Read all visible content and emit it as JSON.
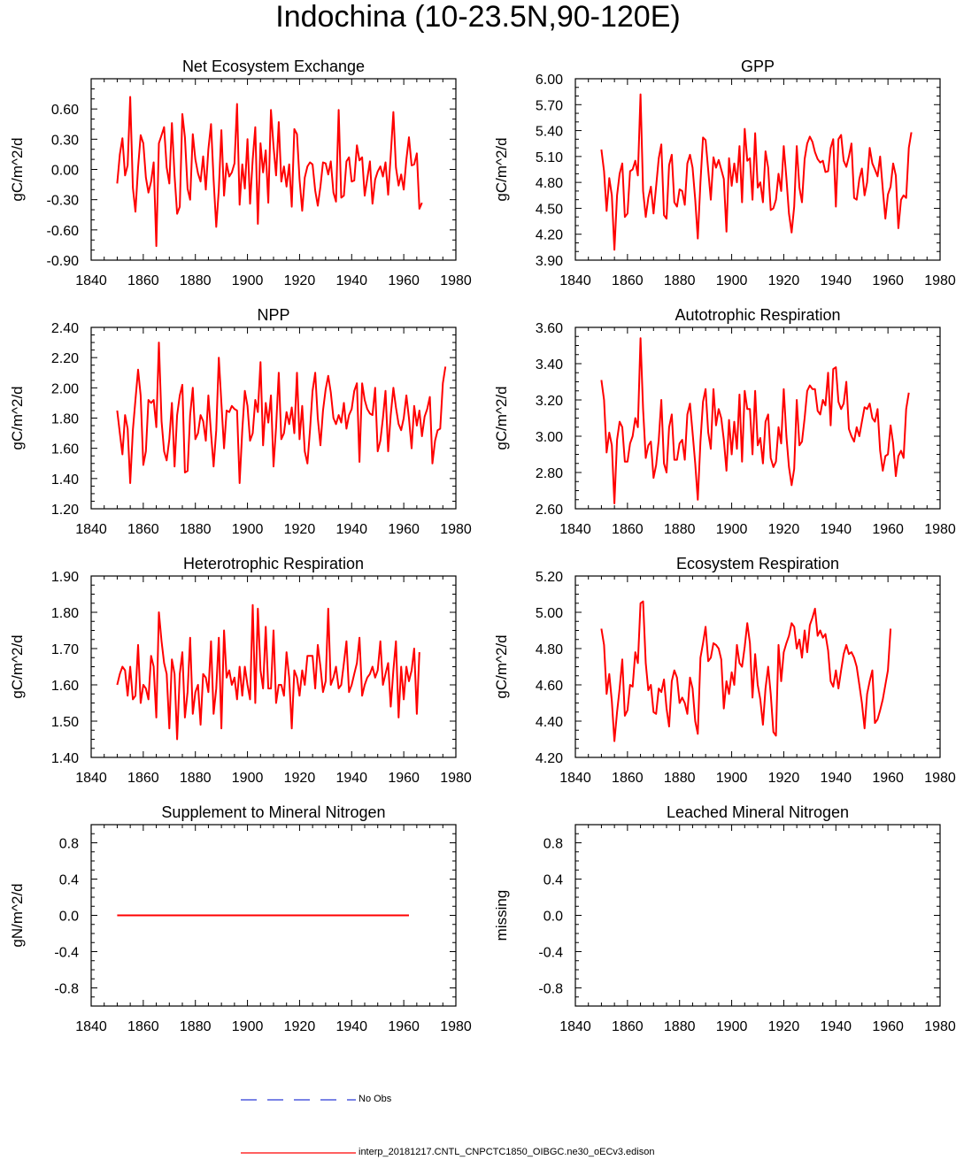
{
  "page_title": "Indochina (10-23.5N,90-120E)",
  "legend": {
    "obs_label": "No Obs",
    "model_label": "interp_20181217.CNTL_CNPCTC1850_OIBGC.ne30_oECv3.edison",
    "obs_color": "#2b3bd6",
    "model_color": "#ff0000"
  },
  "chart_data": [
    {
      "type": "line",
      "title": "Net Ecosystem Exchange",
      "ylabel": "gC/m^2/d",
      "xlim": [
        1840,
        1980
      ],
      "ylim": [
        -0.9,
        0.9
      ],
      "xticks": [
        "1840",
        "1860",
        "1880",
        "1900",
        "1920",
        "1940",
        "1960",
        "1980"
      ],
      "yticks": [
        "-0.90",
        "-0.60",
        "-0.30",
        "0.00",
        "0.30",
        "0.60"
      ],
      "series": [
        {
          "name": "model",
          "color": "#ff0000",
          "x_start": 1850,
          "values": [
            -0.14,
            0.15,
            0.31,
            -0.06,
            0.04,
            0.72,
            -0.18,
            -0.42,
            0.02,
            0.34,
            0.26,
            -0.08,
            -0.23,
            -0.12,
            0.07,
            -0.76,
            0.26,
            0.34,
            0.42,
            0.02,
            -0.14,
            0.46,
            -0.06,
            -0.44,
            -0.37,
            0.55,
            0.32,
            -0.19,
            -0.3,
            0.35,
            0.1,
            -0.04,
            -0.12,
            0.13,
            -0.2,
            0.2,
            0.45,
            -0.1,
            -0.57,
            -0.2,
            0.39,
            -0.26,
            0.06,
            -0.07,
            -0.03,
            0.06,
            0.65,
            -0.35,
            0.05,
            -0.19,
            0.3,
            -0.34,
            0.1,
            0.42,
            -0.54,
            0.26,
            -0.03,
            0.19,
            -0.33,
            0.59,
            0.23,
            -0.06,
            0.47,
            -0.12,
            0.03,
            -0.17,
            0.05,
            -0.37,
            0.4,
            0.35,
            -0.1,
            -0.41,
            -0.08,
            0.03,
            0.07,
            0.05,
            -0.21,
            -0.36,
            -0.17,
            0.07,
            0.06,
            -0.05,
            0.08,
            -0.23,
            -0.32,
            0.59,
            -0.28,
            -0.26,
            0.08,
            0.12,
            -0.12,
            -0.11,
            0.24,
            0.09,
            0.12,
            -0.26,
            -0.09,
            0.08,
            -0.34,
            -0.1,
            -0.02,
            0.03,
            -0.07,
            0.07,
            -0.25,
            0.14,
            0.57,
            0.02,
            -0.16,
            -0.05,
            -0.2,
            0.1,
            0.32,
            0.04,
            0.05,
            0.16,
            -0.39,
            -0.33
          ]
        }
      ]
    },
    {
      "type": "line",
      "title": "GPP",
      "ylabel": "gC/m^2/d",
      "xlim": [
        1840,
        1980
      ],
      "ylim": [
        3.9,
        6.0
      ],
      "xticks": [
        "1840",
        "1860",
        "1880",
        "1900",
        "1920",
        "1940",
        "1960",
        "1980"
      ],
      "yticks": [
        "3.90",
        "4.20",
        "4.50",
        "4.80",
        "5.10",
        "5.40",
        "5.70",
        "6.00"
      ],
      "series": [
        {
          "name": "model",
          "color": "#ff0000",
          "x_start": 1850,
          "values": [
            5.18,
            4.93,
            4.47,
            4.85,
            4.65,
            4.02,
            4.65,
            4.9,
            5.02,
            4.4,
            4.44,
            4.93,
            4.95,
            5.05,
            4.88,
            5.82,
            4.7,
            4.4,
            4.62,
            4.75,
            4.44,
            4.75,
            5.08,
            5.24,
            4.42,
            4.38,
            5.0,
            5.12,
            4.57,
            4.52,
            4.72,
            4.7,
            4.54,
            5.02,
            5.12,
            4.97,
            4.6,
            4.15,
            4.8,
            5.32,
            5.29,
            4.94,
            4.6,
            5.09,
            4.97,
            5.06,
            4.95,
            4.84,
            4.23,
            5.08,
            4.76,
            5.02,
            4.8,
            5.22,
            4.57,
            5.42,
            5.05,
            5.08,
            4.6,
            5.37,
            4.74,
            4.8,
            4.57,
            5.16,
            4.97,
            4.48,
            4.5,
            4.6,
            4.9,
            4.7,
            5.22,
            4.85,
            4.44,
            4.22,
            4.52,
            5.22,
            4.74,
            4.57,
            5.07,
            5.25,
            5.33,
            5.27,
            5.15,
            5.07,
            5.03,
            5.05,
            4.92,
            4.93,
            5.2,
            5.3,
            4.52,
            5.3,
            5.35,
            5.05,
            4.98,
            5.1,
            5.25,
            4.62,
            4.6,
            4.84,
            4.96,
            4.65,
            4.8,
            5.2,
            5.02,
            4.95,
            4.87,
            5.1,
            4.72,
            4.38,
            4.66,
            4.75,
            5.02,
            4.88,
            4.27,
            4.6,
            4.65,
            4.62,
            5.2,
            5.38
          ]
        }
      ]
    },
    {
      "type": "line",
      "title": "NPP",
      "ylabel": "gC/m^2/d",
      "xlim": [
        1840,
        1980
      ],
      "ylim": [
        1.2,
        2.4
      ],
      "xticks": [
        "1840",
        "1860",
        "1880",
        "1900",
        "1920",
        "1940",
        "1960",
        "1980"
      ],
      "yticks": [
        "1.20",
        "1.40",
        "1.60",
        "1.80",
        "2.00",
        "2.20",
        "2.40"
      ],
      "series": [
        {
          "name": "model",
          "color": "#ff0000",
          "x_start": 1850,
          "values": [
            1.85,
            1.7,
            1.56,
            1.82,
            1.73,
            1.37,
            1.72,
            1.92,
            2.12,
            1.95,
            1.49,
            1.58,
            1.92,
            1.9,
            1.92,
            1.74,
            2.3,
            1.78,
            1.58,
            1.52,
            1.66,
            1.9,
            1.48,
            1.82,
            1.95,
            2.02,
            1.44,
            1.45,
            1.82,
            2.0,
            1.66,
            1.7,
            1.82,
            1.78,
            1.65,
            1.95,
            1.7,
            1.48,
            1.72,
            2.2,
            1.9,
            1.6,
            1.85,
            1.84,
            1.88,
            1.86,
            1.85,
            1.37,
            1.72,
            1.98,
            1.88,
            1.65,
            1.7,
            1.92,
            1.84,
            2.17,
            1.62,
            1.9,
            1.77,
            1.95,
            1.48,
            1.74,
            2.1,
            1.66,
            1.7,
            1.84,
            1.76,
            1.87,
            1.7,
            2.1,
            1.66,
            1.88,
            1.58,
            1.5,
            1.72,
            1.98,
            2.1,
            1.8,
            1.62,
            1.85,
            1.99,
            2.08,
            1.97,
            1.8,
            1.76,
            1.82,
            1.77,
            1.9,
            1.73,
            1.82,
            1.86,
            1.98,
            2.03,
            1.51,
            2.03,
            1.92,
            1.86,
            1.83,
            1.82,
            2.0,
            1.58,
            1.65,
            1.8,
            1.98,
            1.58,
            1.82,
            2.0,
            1.87,
            1.76,
            1.72,
            1.8,
            1.95,
            1.8,
            1.6,
            1.88,
            1.75,
            1.85,
            1.68,
            1.81,
            1.86,
            1.94,
            1.5,
            1.65,
            1.72,
            1.73,
            2.03,
            2.14
          ]
        }
      ]
    },
    {
      "type": "line",
      "title": "Autotrophic Respiration",
      "ylabel": "gC/m^2/d",
      "xlim": [
        1840,
        1980
      ],
      "ylim": [
        2.6,
        3.6
      ],
      "xticks": [
        "1840",
        "1860",
        "1880",
        "1900",
        "1920",
        "1940",
        "1960",
        "1980"
      ],
      "yticks": [
        "2.60",
        "2.80",
        "3.00",
        "3.20",
        "3.40",
        "3.60"
      ],
      "series": [
        {
          "name": "model",
          "color": "#ff0000",
          "x_start": 1850,
          "values": [
            3.31,
            3.2,
            2.91,
            3.02,
            2.95,
            2.63,
            2.98,
            3.08,
            3.05,
            2.86,
            2.86,
            2.96,
            3.0,
            3.1,
            3.05,
            3.54,
            3.15,
            2.88,
            2.95,
            2.97,
            2.77,
            2.84,
            2.98,
            3.2,
            2.85,
            2.8,
            3.05,
            3.12,
            2.87,
            2.87,
            2.96,
            2.98,
            2.87,
            3.12,
            3.18,
            3.02,
            2.85,
            2.65,
            2.97,
            3.19,
            3.26,
            3.02,
            2.93,
            3.26,
            3.06,
            3.15,
            3.1,
            2.98,
            2.81,
            3.09,
            2.9,
            3.08,
            2.93,
            3.23,
            2.86,
            3.25,
            3.15,
            3.15,
            2.9,
            3.25,
            2.95,
            2.99,
            2.85,
            3.08,
            3.12,
            2.88,
            2.83,
            2.86,
            3.05,
            2.96,
            3.26,
            3.0,
            2.83,
            2.73,
            2.82,
            3.2,
            2.95,
            2.97,
            3.1,
            3.25,
            3.28,
            3.26,
            3.26,
            3.14,
            3.12,
            3.2,
            3.17,
            3.35,
            3.06,
            3.37,
            3.38,
            3.19,
            3.15,
            3.18,
            3.3,
            3.04,
            3.0,
            2.97,
            3.05,
            3.0,
            3.08,
            3.16,
            3.15,
            3.18,
            3.1,
            3.08,
            3.15,
            2.92,
            2.81,
            2.89,
            2.9,
            3.06,
            2.96,
            2.78,
            2.89,
            2.92,
            2.88,
            3.15,
            3.24
          ]
        }
      ]
    },
    {
      "type": "line",
      "title": "Heterotrophic Respiration",
      "ylabel": "gC/m^2/d",
      "xlim": [
        1840,
        1980
      ],
      "ylim": [
        1.4,
        1.9
      ],
      "xticks": [
        "1840",
        "1860",
        "1880",
        "1900",
        "1920",
        "1940",
        "1960",
        "1980"
      ],
      "yticks": [
        "1.40",
        "1.50",
        "1.60",
        "1.70",
        "1.80",
        "1.90"
      ],
      "series": [
        {
          "name": "model",
          "color": "#ff0000",
          "x_start": 1850,
          "values": [
            1.6,
            1.63,
            1.65,
            1.64,
            1.57,
            1.65,
            1.56,
            1.57,
            1.71,
            1.55,
            1.6,
            1.59,
            1.56,
            1.68,
            1.65,
            1.51,
            1.8,
            1.72,
            1.66,
            1.63,
            1.48,
            1.67,
            1.63,
            1.45,
            1.63,
            1.69,
            1.51,
            1.58,
            1.73,
            1.52,
            1.58,
            1.6,
            1.49,
            1.63,
            1.62,
            1.58,
            1.72,
            1.52,
            1.59,
            1.73,
            1.48,
            1.75,
            1.62,
            1.64,
            1.6,
            1.62,
            1.56,
            1.65,
            1.57,
            1.65,
            1.6,
            1.56,
            1.82,
            1.55,
            1.81,
            1.64,
            1.59,
            1.76,
            1.59,
            1.59,
            1.75,
            1.55,
            1.6,
            1.6,
            1.57,
            1.69,
            1.62,
            1.48,
            1.64,
            1.62,
            1.57,
            1.64,
            1.6,
            1.68,
            1.68,
            1.68,
            1.59,
            1.71,
            1.65,
            1.58,
            1.61,
            1.81,
            1.6,
            1.62,
            1.65,
            1.59,
            1.6,
            1.66,
            1.72,
            1.58,
            1.6,
            1.63,
            1.66,
            1.73,
            1.57,
            1.6,
            1.62,
            1.63,
            1.65,
            1.62,
            1.64,
            1.72,
            1.6,
            1.63,
            1.66,
            1.54,
            1.64,
            1.72,
            1.51,
            1.65,
            1.56,
            1.65,
            1.61,
            1.64,
            1.7,
            1.52,
            1.69
          ]
        }
      ]
    },
    {
      "type": "line",
      "title": "Ecosystem Respiration",
      "ylabel": "gC/m^2/d",
      "xlim": [
        1840,
        1980
      ],
      "ylim": [
        4.2,
        5.2
      ],
      "xticks": [
        "1840",
        "1860",
        "1880",
        "1900",
        "1920",
        "1940",
        "1960",
        "1980"
      ],
      "yticks": [
        "4.20",
        "4.40",
        "4.60",
        "4.80",
        "5.00",
        "5.20"
      ],
      "series": [
        {
          "name": "model",
          "color": "#ff0000",
          "x_start": 1850,
          "values": [
            4.91,
            4.82,
            4.55,
            4.66,
            4.51,
            4.29,
            4.45,
            4.58,
            4.74,
            4.43,
            4.46,
            4.6,
            4.59,
            4.78,
            4.72,
            5.05,
            5.06,
            4.72,
            4.57,
            4.6,
            4.45,
            4.44,
            4.58,
            4.56,
            4.63,
            4.47,
            4.37,
            4.62,
            4.68,
            4.64,
            4.5,
            4.53,
            4.5,
            4.44,
            4.64,
            4.58,
            4.4,
            4.33,
            4.75,
            4.83,
            4.92,
            4.73,
            4.75,
            4.83,
            4.82,
            4.8,
            4.74,
            4.47,
            4.62,
            4.55,
            4.67,
            4.6,
            4.82,
            4.72,
            4.7,
            4.81,
            4.94,
            4.83,
            4.53,
            4.77,
            4.6,
            4.52,
            4.38,
            4.58,
            4.7,
            4.55,
            4.34,
            4.32,
            4.82,
            4.62,
            4.78,
            4.83,
            4.87,
            4.94,
            4.92,
            4.8,
            4.85,
            4.75,
            4.9,
            4.78,
            4.93,
            4.97,
            5.02,
            4.87,
            4.9,
            4.86,
            4.88,
            4.79,
            4.62,
            4.59,
            4.68,
            4.58,
            4.68,
            4.77,
            4.82,
            4.77,
            4.78,
            4.75,
            4.7,
            4.6,
            4.5,
            4.36,
            4.55,
            4.62,
            4.68,
            4.39,
            4.41,
            4.46,
            4.52,
            4.6,
            4.68,
            4.91
          ]
        }
      ]
    },
    {
      "type": "line",
      "title": "Supplement to Mineral Nitrogen",
      "ylabel": "gN/m^2/d",
      "xlim": [
        1840,
        1980
      ],
      "ylim": [
        -1.0,
        1.0
      ],
      "xticks": [
        "1840",
        "1860",
        "1880",
        "1900",
        "1920",
        "1940",
        "1960",
        "1980"
      ],
      "yticks": [
        "-0.8",
        "-0.4",
        "0.0",
        "0.4",
        "0.8"
      ],
      "series": [
        {
          "name": "model",
          "color": "#ff0000",
          "x": [
            1850,
            1962
          ],
          "values": [
            0.0,
            0.0
          ]
        }
      ]
    },
    {
      "type": "line",
      "title": "Leached Mineral Nitrogen",
      "ylabel": "missing",
      "xlim": [
        1840,
        1980
      ],
      "ylim": [
        -1.0,
        1.0
      ],
      "xticks": [
        "1840",
        "1860",
        "1880",
        "1900",
        "1920",
        "1940",
        "1960",
        "1980"
      ],
      "yticks": [
        "-0.8",
        "-0.4",
        "0.0",
        "0.4",
        "0.8"
      ],
      "series": []
    }
  ]
}
